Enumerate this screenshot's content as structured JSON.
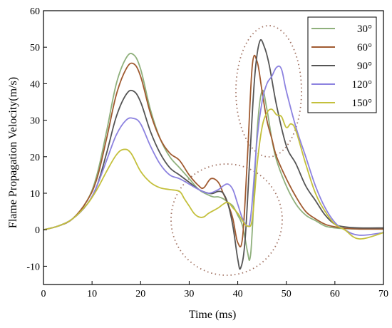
{
  "chart_data": {
    "type": "line",
    "xlabel": "Time (ms)",
    "ylabel": "Flame Propagation Velocity(m/s)",
    "xlim": [
      0,
      70
    ],
    "ylim": [
      -15,
      60
    ],
    "xticks": [
      0,
      10,
      20,
      30,
      40,
      50,
      60,
      70
    ],
    "yticks": [
      -10,
      0,
      10,
      20,
      30,
      40,
      50,
      60
    ],
    "grid": false,
    "legend_position": "top-right",
    "series": [
      {
        "name": "30°",
        "color": "#8fb07c",
        "x": [
          0,
          3,
          6,
          9,
          11,
          13,
          15,
          17,
          18.5,
          20,
          22,
          24,
          26,
          28,
          30,
          32,
          34,
          35,
          36,
          37,
          38,
          39,
          40,
          41,
          42,
          42.5,
          43,
          44,
          45,
          46,
          47,
          48,
          50,
          52,
          54,
          56,
          58,
          60,
          62,
          65,
          70
        ],
        "y": [
          0,
          1,
          3,
          8,
          15,
          27,
          40,
          47,
          48,
          44,
          33,
          25,
          20,
          17,
          14,
          11,
          9.5,
          9,
          9,
          8.5,
          7.5,
          6.5,
          4,
          1,
          -6,
          -8,
          0,
          27,
          38,
          33,
          25,
          19,
          12,
          7,
          4,
          2.5,
          1,
          0.5,
          0.3,
          0.2,
          0.2
        ]
      },
      {
        "name": "60°",
        "color": "#a05a30",
        "x": [
          0,
          3,
          6,
          9,
          11,
          13,
          15,
          17,
          18.5,
          20,
          22,
          24,
          26,
          28,
          30,
          32,
          33,
          34.5,
          36,
          37,
          38,
          39,
          40,
          41,
          42,
          43,
          44,
          45,
          46,
          47,
          48,
          50,
          52,
          54,
          56,
          58,
          60,
          62,
          65,
          70
        ],
        "y": [
          0,
          1,
          3,
          8,
          14,
          25,
          37,
          44,
          45.5,
          42,
          32,
          25,
          21,
          19,
          15,
          12,
          11.5,
          14,
          13,
          10,
          7,
          3,
          -3.5,
          -2,
          20,
          45,
          46,
          38,
          30,
          25,
          20,
          14,
          9,
          5,
          3,
          1.5,
          0.8,
          0.4,
          0.2,
          0.2
        ]
      },
      {
        "name": "90°",
        "color": "#555555",
        "x": [
          0,
          3,
          6,
          9,
          11,
          13,
          15,
          17,
          18.5,
          20,
          22,
          24,
          26,
          28,
          30,
          32,
          34,
          35,
          36,
          37,
          38,
          39,
          40,
          40.6,
          41.5,
          42.5,
          43.5,
          44.5,
          45.5,
          46.5,
          48,
          50,
          52,
          54,
          56,
          58,
          60,
          62,
          65,
          70
        ],
        "y": [
          0,
          1,
          3,
          7,
          12,
          21,
          31,
          37,
          38,
          35,
          27,
          21,
          17,
          15,
          13,
          11,
          10,
          10,
          10.5,
          10,
          7,
          1,
          -8,
          -10.5,
          -3,
          20,
          42,
          51.5,
          50,
          45,
          34,
          23,
          18,
          12,
          8,
          4,
          1.5,
          0.8,
          0.5,
          0.5
        ]
      },
      {
        "name": "120°",
        "color": "#8c82e0",
        "x": [
          0,
          3,
          6,
          9,
          11,
          13,
          15,
          17,
          18.5,
          20,
          22,
          24,
          26,
          28,
          30,
          32,
          34,
          36,
          37,
          38,
          39,
          40,
          41,
          42,
          42.5,
          43,
          44,
          45,
          46,
          47,
          48,
          49,
          50,
          52,
          54,
          56,
          58,
          60,
          62,
          65,
          70
        ],
        "y": [
          0,
          1,
          3,
          7,
          12,
          19,
          26,
          30,
          30.5,
          29,
          23,
          18,
          15,
          14,
          12.5,
          11,
          10,
          11,
          12,
          12.5,
          11,
          7,
          3,
          1,
          2,
          8,
          25,
          35,
          40,
          42,
          44.5,
          44,
          38,
          28,
          20,
          12,
          6,
          2,
          0,
          -1.5,
          -0.8
        ]
      },
      {
        "name": "150°",
        "color": "#c4c03c",
        "x": [
          0,
          3,
          6,
          9,
          11,
          13,
          15,
          16.5,
          18,
          20,
          22,
          24,
          26,
          28,
          29,
          30,
          31,
          32,
          33,
          34,
          36,
          37,
          38,
          39,
          40,
          41,
          42,
          43,
          44,
          45,
          46,
          47,
          48,
          49,
          50,
          51,
          52,
          54,
          56,
          58,
          60,
          62,
          65,
          70
        ],
        "y": [
          0,
          1,
          3,
          7,
          11,
          16,
          20.5,
          22,
          21,
          16,
          13,
          11.5,
          11,
          10.5,
          8.5,
          6.5,
          4.5,
          3.5,
          3.5,
          4.5,
          6,
          7,
          7.5,
          6,
          4.5,
          2.5,
          1,
          3,
          18,
          28,
          32,
          33,
          31.5,
          31,
          28,
          29,
          27,
          18,
          10,
          5,
          1.5,
          0,
          -2.5,
          -0.8
        ]
      }
    ]
  }
}
